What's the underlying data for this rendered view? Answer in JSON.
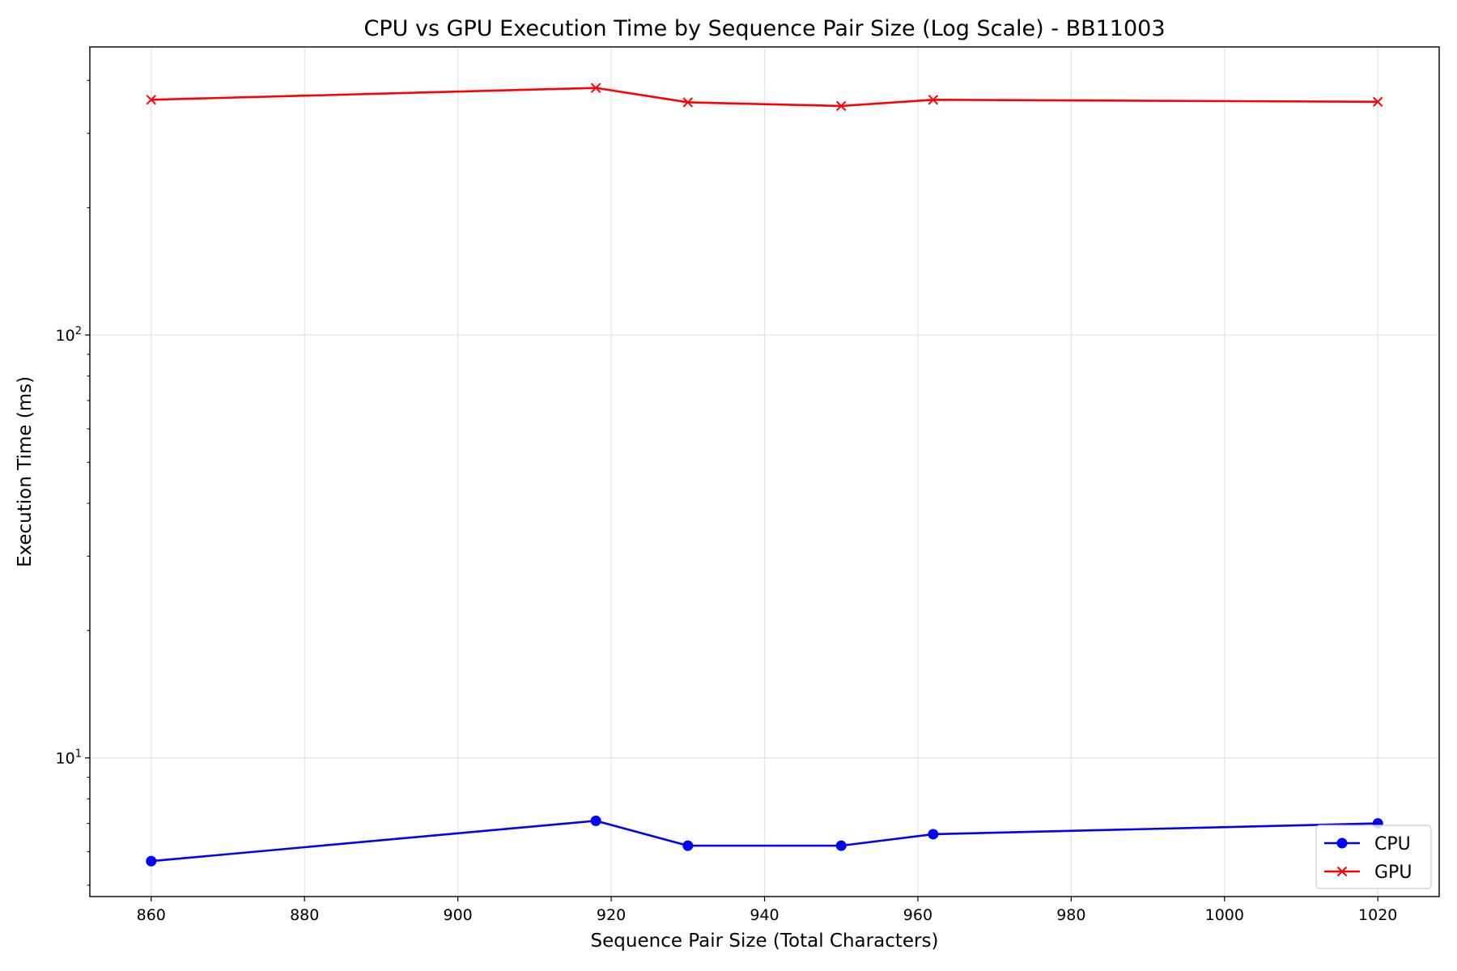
{
  "chart_data": {
    "type": "line",
    "title": "CPU vs GPU Execution Time by Sequence Pair Size (Log Scale) - BB11003",
    "xlabel": "Sequence Pair Size (Total Characters)",
    "ylabel": "Execution Time (ms)",
    "x": [
      860,
      918,
      930,
      950,
      962,
      1020
    ],
    "xlim": [
      852,
      1028
    ],
    "ylim": [
      4.7,
      480
    ],
    "yscale": "log",
    "xticks": [
      860,
      880,
      900,
      920,
      940,
      960,
      980,
      1000,
      1020
    ],
    "xtick_labels": [
      "860",
      "880",
      "900",
      "920",
      "940",
      "960",
      "980",
      "1000",
      "1020"
    ],
    "yticks_major": [
      10,
      100
    ],
    "ytick_labels": [
      {
        "base": "10",
        "exp": "1"
      },
      {
        "base": "10",
        "exp": "2"
      }
    ],
    "grid": true,
    "legend_position": "lower-right",
    "series": [
      {
        "name": "CPU",
        "color": "#0000ff",
        "marker": "circle",
        "values": [
          5.7,
          7.1,
          6.2,
          6.2,
          6.6,
          7.0
        ]
      },
      {
        "name": "GPU",
        "color": "#ff0000",
        "marker": "x",
        "values": [
          360,
          384,
          355,
          348,
          360,
          356
        ]
      }
    ]
  }
}
